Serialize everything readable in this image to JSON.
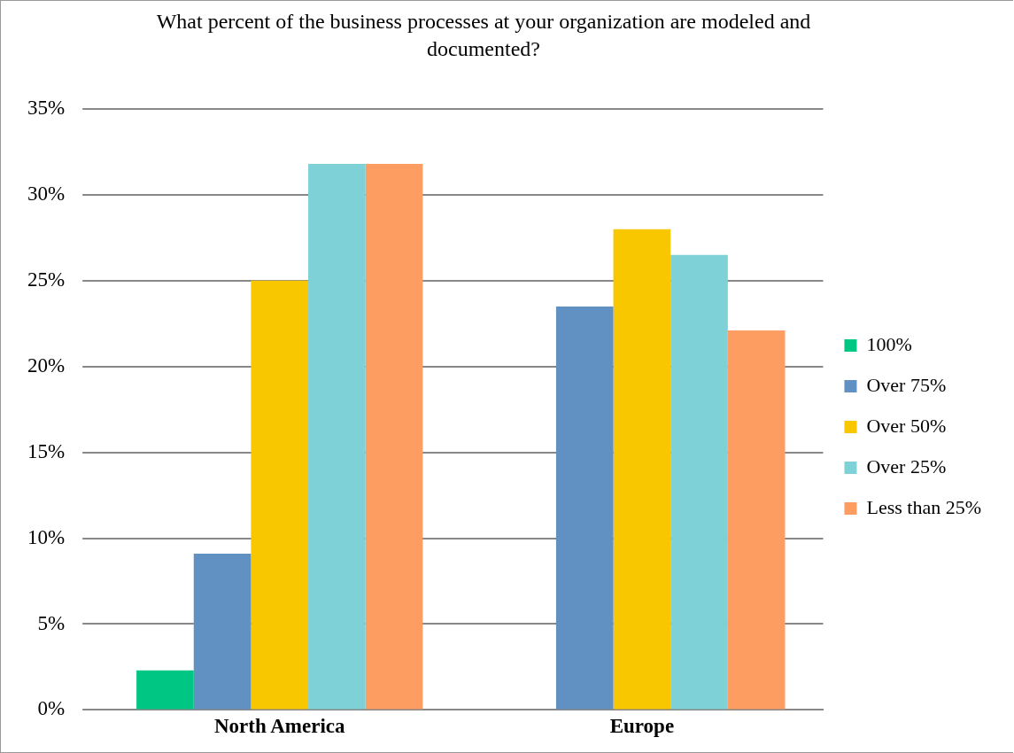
{
  "chart_data": {
    "type": "bar",
    "title": "What percent of the business processes at your organization are modeled and documented?",
    "categories": [
      "North America",
      "Europe"
    ],
    "series": [
      {
        "name": "100%",
        "color": "#00c684",
        "values": [
          2.3,
          0
        ]
      },
      {
        "name": "Over 75%",
        "color": "#6190c2",
        "values": [
          9.1,
          23.5
        ]
      },
      {
        "name": "Over 50%",
        "color": "#f9c700",
        "values": [
          25.0,
          28.0
        ]
      },
      {
        "name": "Over 25%",
        "color": "#7ed1d6",
        "values": [
          31.8,
          26.5
        ]
      },
      {
        "name": "Less than 25%",
        "color": "#fd9d62",
        "values": [
          31.8,
          22.1
        ]
      }
    ],
    "ylim": [
      0,
      35
    ],
    "yticks": [
      {
        "value": 0,
        "label": "0%"
      },
      {
        "value": 5,
        "label": "5%"
      },
      {
        "value": 10,
        "label": "10%"
      },
      {
        "value": 15,
        "label": "15%"
      },
      {
        "value": 20,
        "label": "20%"
      },
      {
        "value": 25,
        "label": "25%"
      },
      {
        "value": 30,
        "label": "30%"
      },
      {
        "value": 35,
        "label": "35%"
      }
    ],
    "grid": "y",
    "legend": "right"
  }
}
